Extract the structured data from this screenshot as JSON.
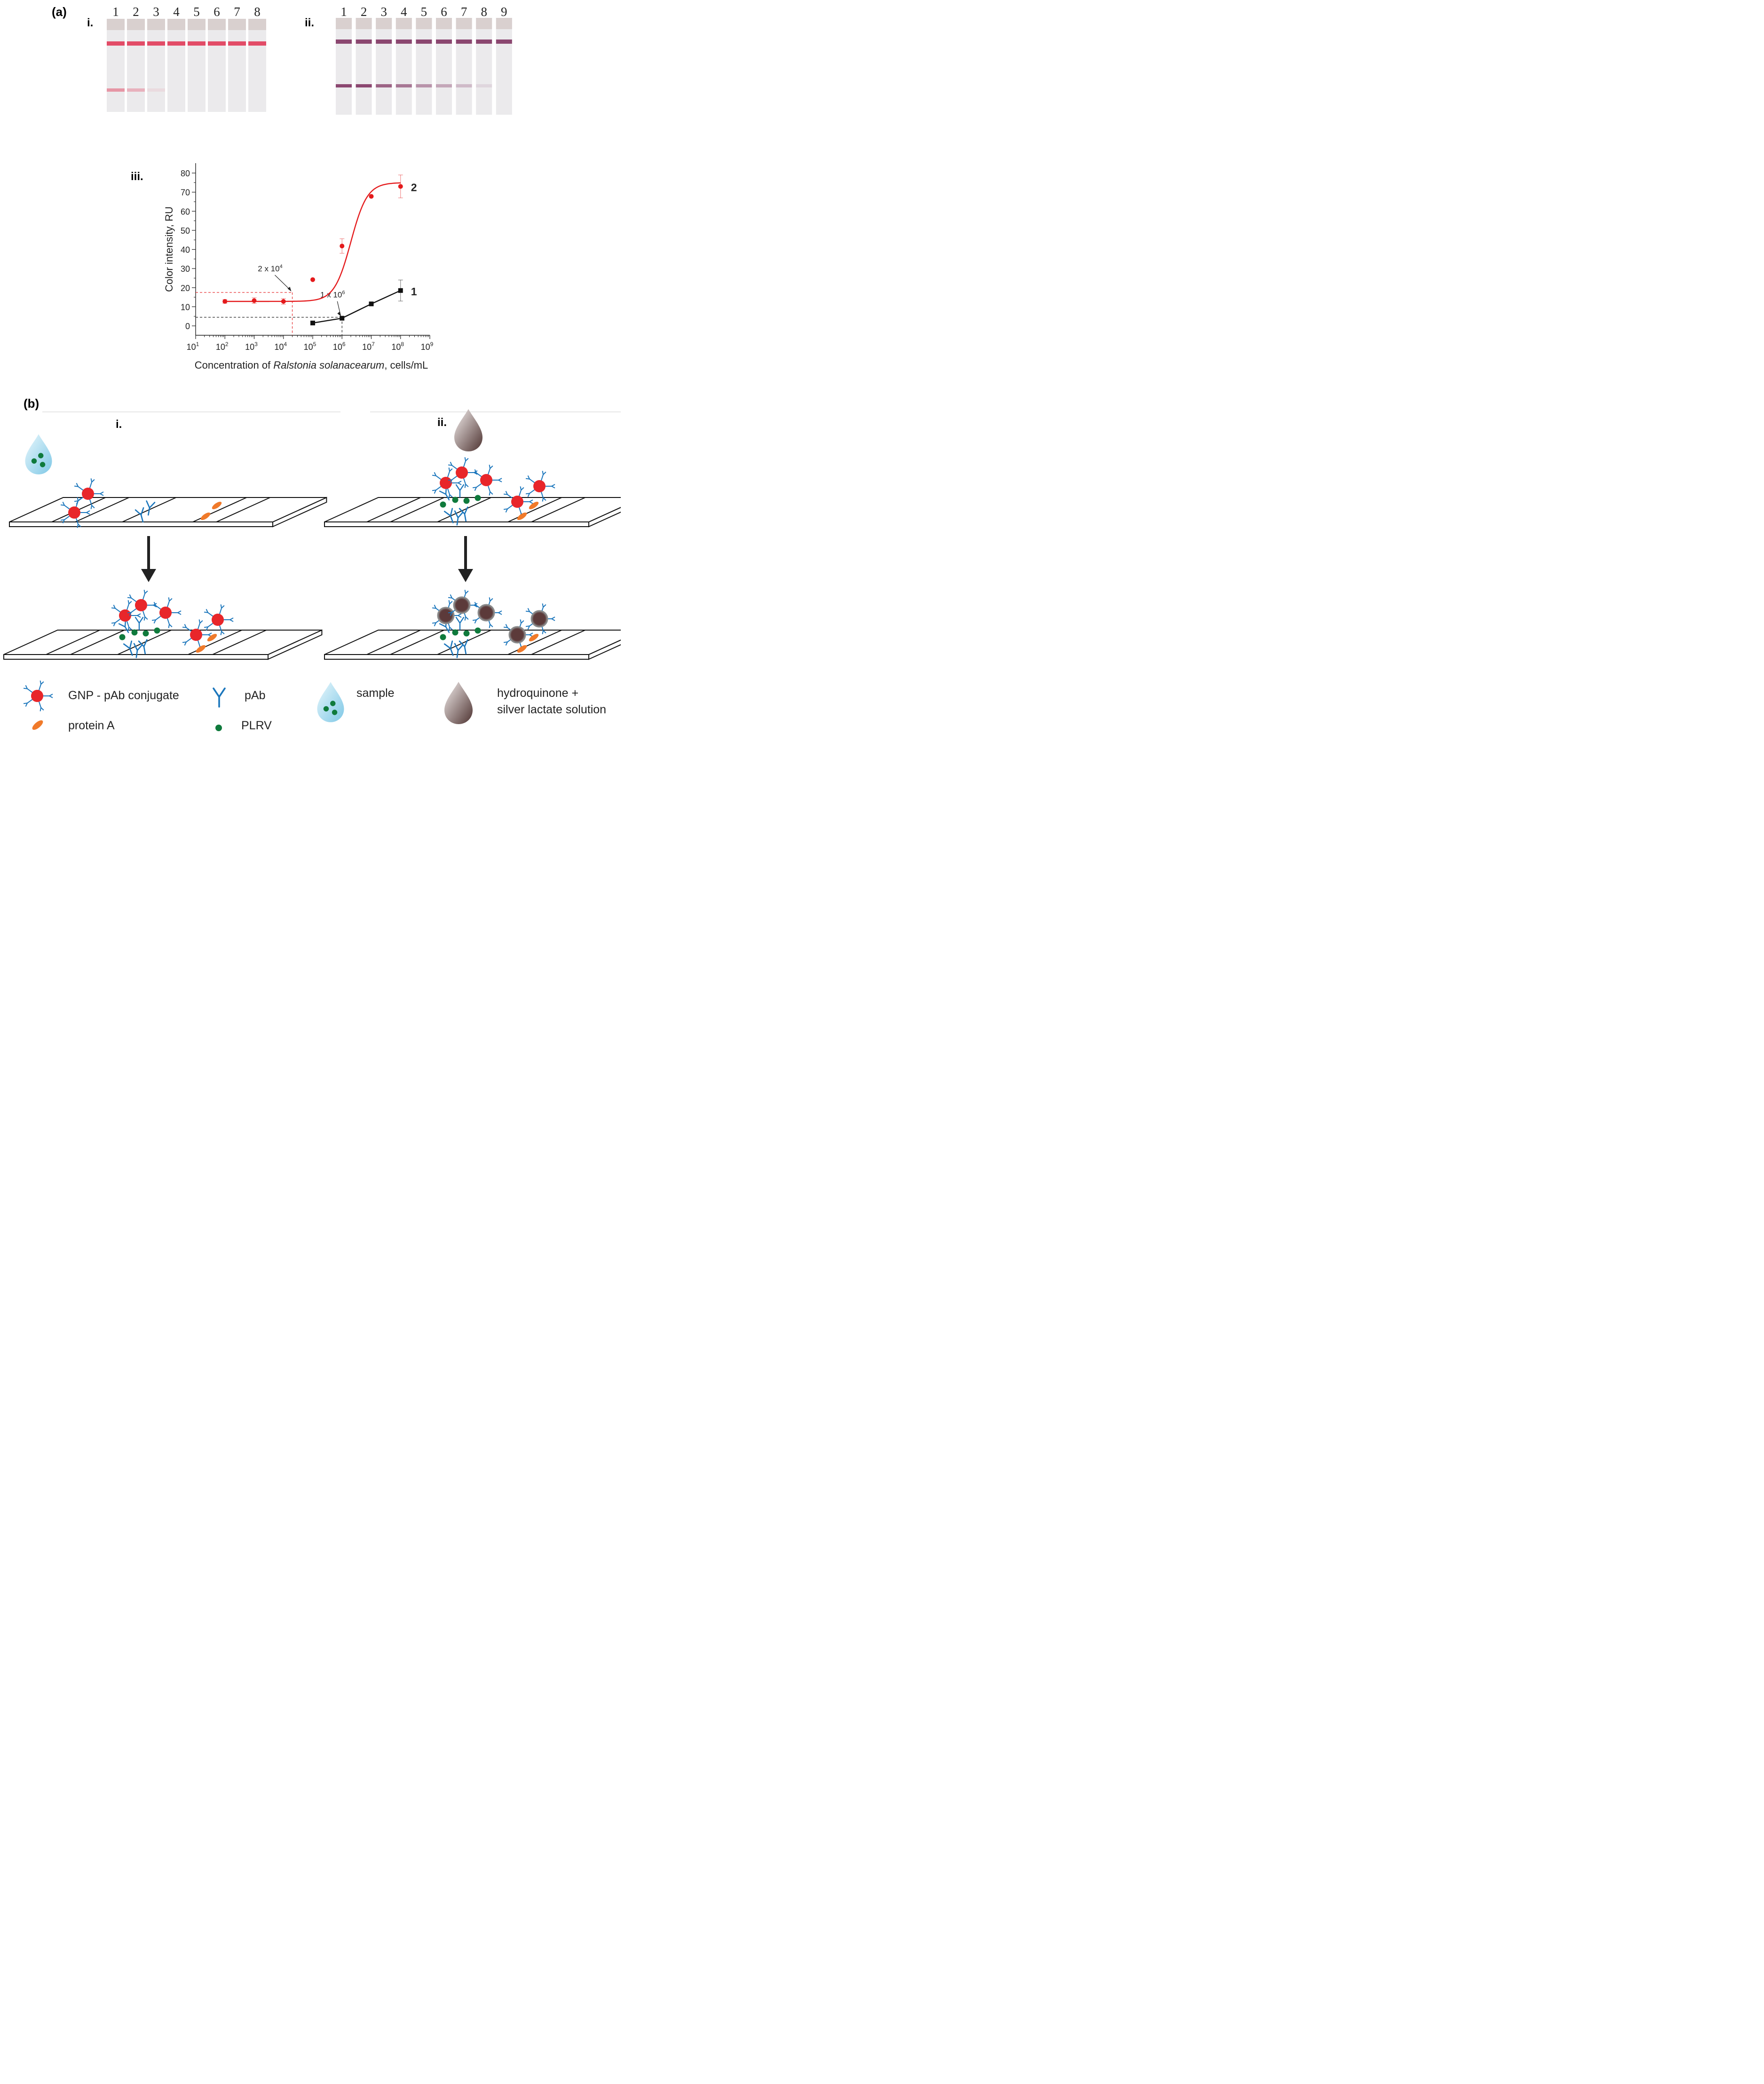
{
  "panels": {
    "a": {
      "label": "(a)",
      "strips_i": {
        "label": "i.",
        "lanes": [
          "1",
          "2",
          "3",
          "4",
          "5",
          "6",
          "7",
          "8"
        ],
        "test_line_intensity": [
          0.45,
          0.3,
          0.08,
          0,
          0,
          0,
          0,
          0
        ]
      },
      "strips_ii": {
        "label": "ii.",
        "lanes": [
          "1",
          "2",
          "3",
          "4",
          "5",
          "6",
          "7",
          "8",
          "9"
        ],
        "test_line_intensity": [
          0.85,
          0.85,
          0.7,
          0.6,
          0.45,
          0.35,
          0.25,
          0.1,
          0
        ]
      },
      "chart_label": "iii."
    },
    "b": {
      "label": "(b)",
      "sub_i": "i.",
      "sub_ii": "ii."
    }
  },
  "chart_data": {
    "type": "scatter",
    "xscale": "log10",
    "xlim": [
      10,
      1000000000
    ],
    "ylim": [
      0,
      80
    ],
    "xlabel_prefix": "Concentration of ",
    "xlabel_italic": "Ralstonia solanacearum",
    "xlabel_suffix": ", cells/mL",
    "ylabel": "Color intensity, RU",
    "y_ticks": [
      "0",
      "10",
      "20",
      "30",
      "40",
      "50",
      "60",
      "70",
      "80"
    ],
    "x_tick_base": "10",
    "x_tick_exponents": [
      "1",
      "2",
      "3",
      "4",
      "5",
      "6",
      "7",
      "8",
      "9"
    ],
    "series": [
      {
        "name": "2",
        "color": "#e41a1c",
        "marker": "circle",
        "x": [
          100,
          1000,
          10000,
          100000,
          1000000,
          10000000,
          100000000
        ],
        "y": [
          12.8,
          13.2,
          12.8,
          24.2,
          41.8,
          67.8,
          73.0
        ],
        "err": [
          1.0,
          1.5,
          1.5,
          0,
          3.8,
          0,
          6.0
        ]
      },
      {
        "name": "1",
        "color": "#111111",
        "marker": "square",
        "x": [
          100000,
          1000000,
          10000000,
          100000000
        ],
        "y": [
          1.5,
          4.0,
          11.5,
          18.5
        ],
        "err": [
          0,
          0,
          0,
          5.5
        ]
      }
    ],
    "annotations": [
      {
        "text_base": "2 x 10",
        "text_exp": "4",
        "x": 20000,
        "y": 17.5,
        "color": "#e41a1c"
      },
      {
        "text_base": "1 x 10",
        "text_exp": "6",
        "x": 1000000,
        "y": 4.5,
        "color": "#111111"
      }
    ]
  },
  "legend": {
    "conjugate": "GNP - pAb conjugate",
    "pab": "pAb",
    "sample": "sample",
    "protein_a": "protein A",
    "plrv": "PLRV",
    "solution_line1": "hydroquinone +",
    "solution_line2": "silver lactate solution"
  },
  "colors": {
    "gnp": "#e8262a",
    "gnp_silver": "#5c3a3a",
    "antibody": "#1b76bc",
    "protein_a": "#f07a2a",
    "plrv": "#0f7a3c",
    "strip_line": "#e03050",
    "strip_line_ii": "#7a2a5a"
  }
}
